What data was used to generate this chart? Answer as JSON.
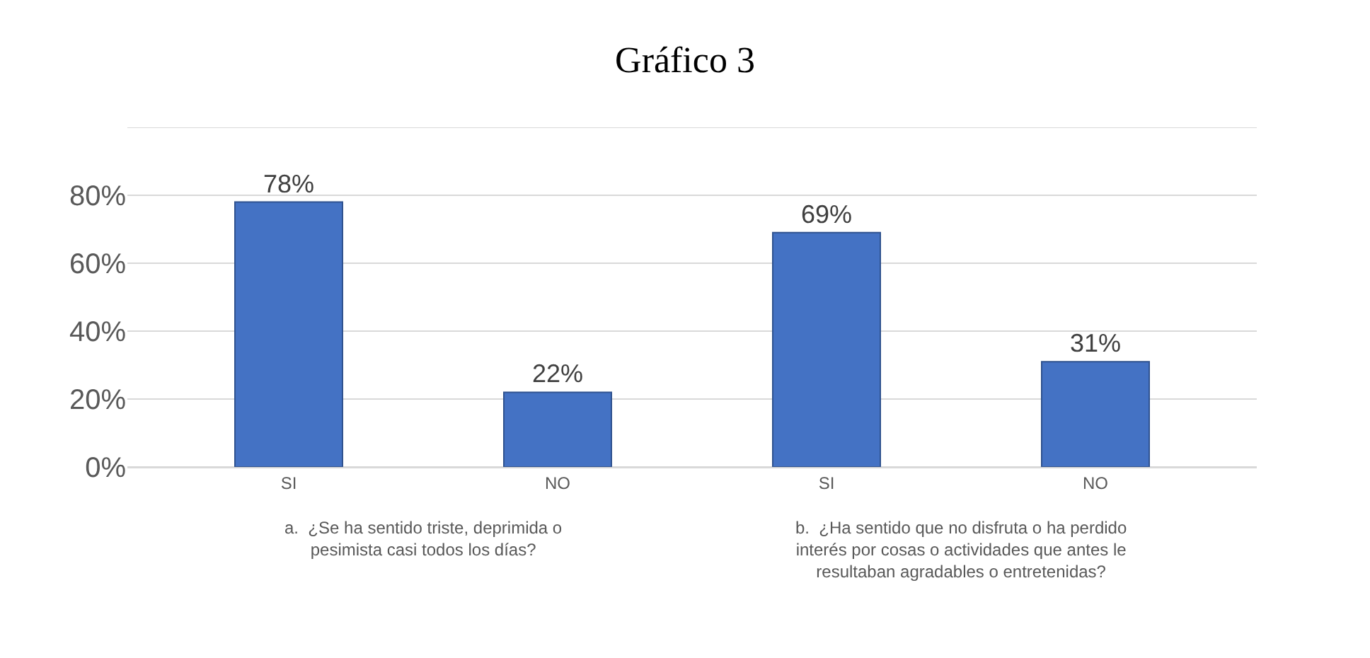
{
  "chart_data": {
    "type": "bar",
    "title": "Gráfico 3",
    "categories": [
      "SI",
      "NO",
      "SI",
      "NO"
    ],
    "values": [
      78,
      22,
      69,
      31
    ],
    "value_labels": [
      "78%",
      "22%",
      "69%",
      "31%"
    ],
    "color": "#4472c4",
    "ylim": [
      0,
      100
    ],
    "yticks": [
      {
        "value": 0,
        "label": "0%"
      },
      {
        "value": 20,
        "label": "20%"
      },
      {
        "value": 40,
        "label": "40%"
      },
      {
        "value": 60,
        "label": "60%"
      },
      {
        "value": 80,
        "label": "80%"
      },
      {
        "value": 100,
        "label": null
      }
    ],
    "grid": "y",
    "legend": false,
    "annotations": [
      "a.  ¿Se ha sentido triste, deprimida o pesimista casi todos los días?",
      "b.  ¿Ha sentido que no disfruta o ha perdido interés por cosas o actividades que antes le resultaban agradables o entretenidas?"
    ]
  }
}
